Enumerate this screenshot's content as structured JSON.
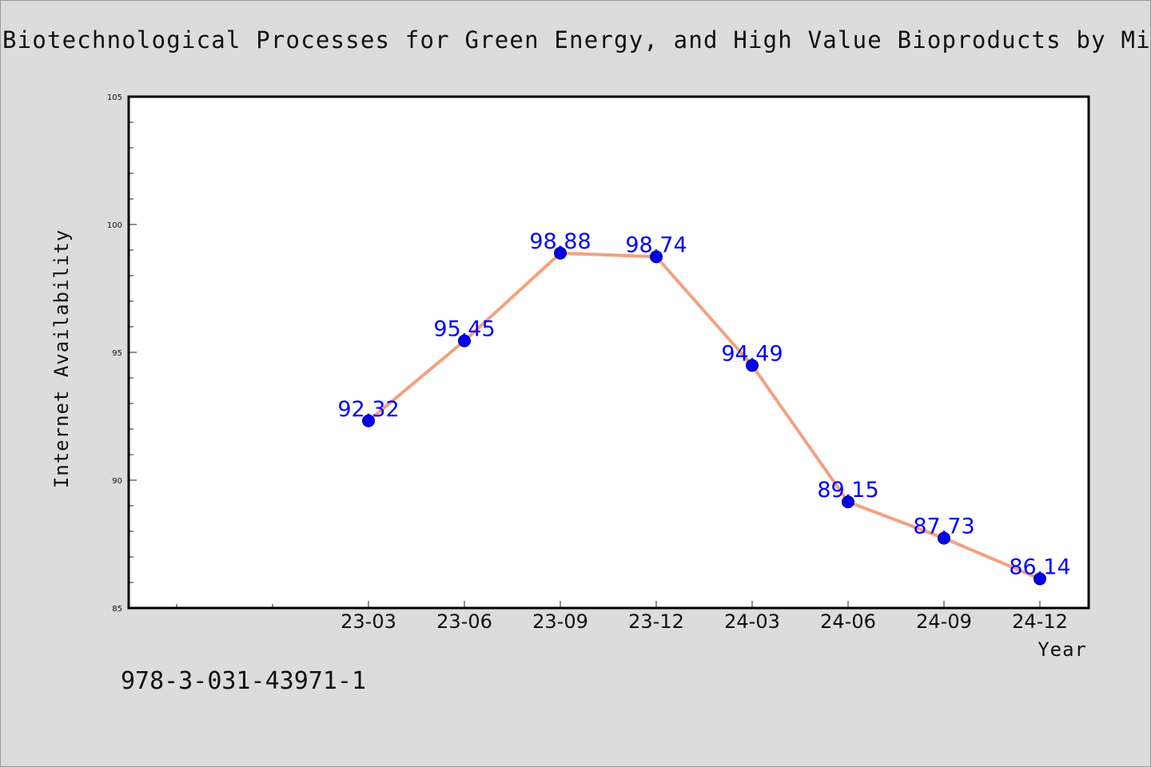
{
  "chart_data": {
    "type": "line",
    "title": "Biotechnological Processes for Green Energy, and High Value Bioproducts by Micro",
    "xlabel": "Year",
    "ylabel": "Internet Availability",
    "categories": [
      "23-03",
      "23-06",
      "23-09",
      "23-12",
      "24-03",
      "24-06",
      "24-09",
      "24-12"
    ],
    "values": [
      92.32,
      95.45,
      98.88,
      98.74,
      94.49,
      89.15,
      87.73,
      86.14
    ],
    "value_labels": [
      "92.32",
      "95.45",
      "98.88",
      "98.74",
      "94.49",
      "89.15",
      "87.73",
      "86.14"
    ],
    "ylim": [
      85,
      105
    ],
    "yticks": [
      85,
      90,
      95,
      100,
      105
    ],
    "grid": false,
    "line_color": "#f4a080",
    "marker_color": "#0000ee",
    "label_color": "#0000ff"
  },
  "footer": {
    "code": "978-3-031-43971-1"
  }
}
